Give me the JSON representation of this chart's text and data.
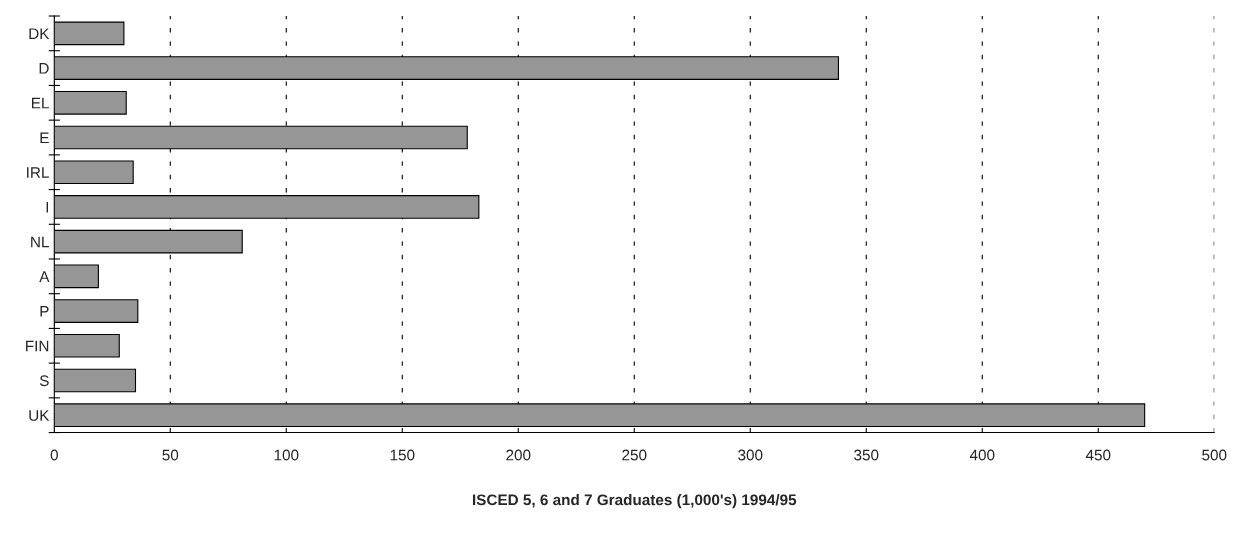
{
  "chart_data": {
    "type": "bar",
    "orientation": "horizontal",
    "xlabel": "ISCED 5, 6 and 7 Graduates (1,000's) 1994/95",
    "categories": [
      "DK",
      "D",
      "EL",
      "E",
      "IRL",
      "I",
      "NL",
      "A",
      "P",
      "FIN",
      "S",
      "UK"
    ],
    "values": [
      30,
      338,
      31,
      178,
      34,
      183,
      81,
      19,
      36,
      28,
      35,
      470
    ],
    "color": "#969696",
    "xlim": [
      0,
      500
    ],
    "xticks": [
      0,
      50,
      100,
      150,
      200,
      250,
      300,
      350,
      400,
      450,
      500
    ],
    "grid": "x"
  }
}
